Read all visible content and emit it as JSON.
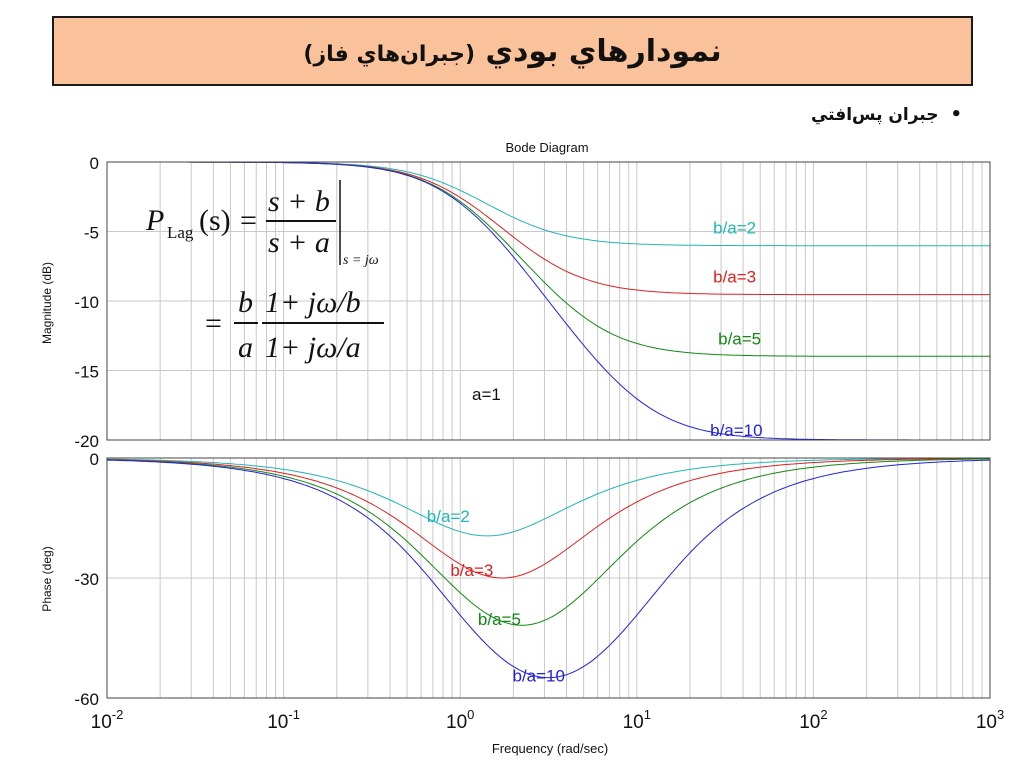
{
  "header": {
    "title_main": "نمودارهاي بودي",
    "title_sub": "(جبران‌هاي فاز)"
  },
  "bullet": {
    "text": "جبران پس‌افتي"
  },
  "chart_data": {
    "type": "line",
    "title": "Bode Diagram",
    "xlabel": "Frequency  (rad/sec)",
    "x_scale": "log",
    "xlim": [
      0.01,
      1000
    ],
    "x_ticks": [
      {
        "base": "10",
        "exp": "-2"
      },
      {
        "base": "10",
        "exp": "-1"
      },
      {
        "base": "10",
        "exp": "0"
      },
      {
        "base": "10",
        "exp": "1"
      },
      {
        "base": "10",
        "exp": "2"
      },
      {
        "base": "10",
        "exp": "3"
      }
    ],
    "magnitude": {
      "ylabel": "Magnitude (dB)",
      "ylim": [
        -20,
        0
      ],
      "yticks": [
        "0",
        "-5",
        "-10",
        "-15",
        "-20"
      ],
      "grid": true
    },
    "phase": {
      "ylabel": "Phase  (deg)",
      "ylim": [
        -60,
        0
      ],
      "yticks": [
        "0",
        "-30",
        "-60"
      ],
      "grid": true
    },
    "series": [
      {
        "name": "b/a=2",
        "b": 2,
        "color": "#22b5b5",
        "mag_label": "b/a=2",
        "phase_label": "b/a=2"
      },
      {
        "name": "b/a=3",
        "b": 3,
        "color": "#dd2020",
        "mag_label": "b/a=3",
        "phase_label": "b/a=3"
      },
      {
        "name": "b/a=5",
        "b": 5,
        "color": "#118811",
        "mag_label": "b/a=5",
        "phase_label": "b/a=5"
      },
      {
        "name": "b/a=10",
        "b": 10,
        "color": "#2222dd",
        "mag_label": "b/a=10",
        "phase_label": "b/a=10"
      }
    ],
    "a": 1,
    "annotations": {
      "a_label": "a=1"
    },
    "formula": {
      "P": "P",
      "sub": "Lag",
      "arg": "(s)",
      "eq": "=",
      "num1": "s + b",
      "den1": "s + a",
      "eval": "s = jω",
      "b": "b",
      "a": "a",
      "num2": "1+ jω/b",
      "den2": "1+ jω/a"
    }
  }
}
